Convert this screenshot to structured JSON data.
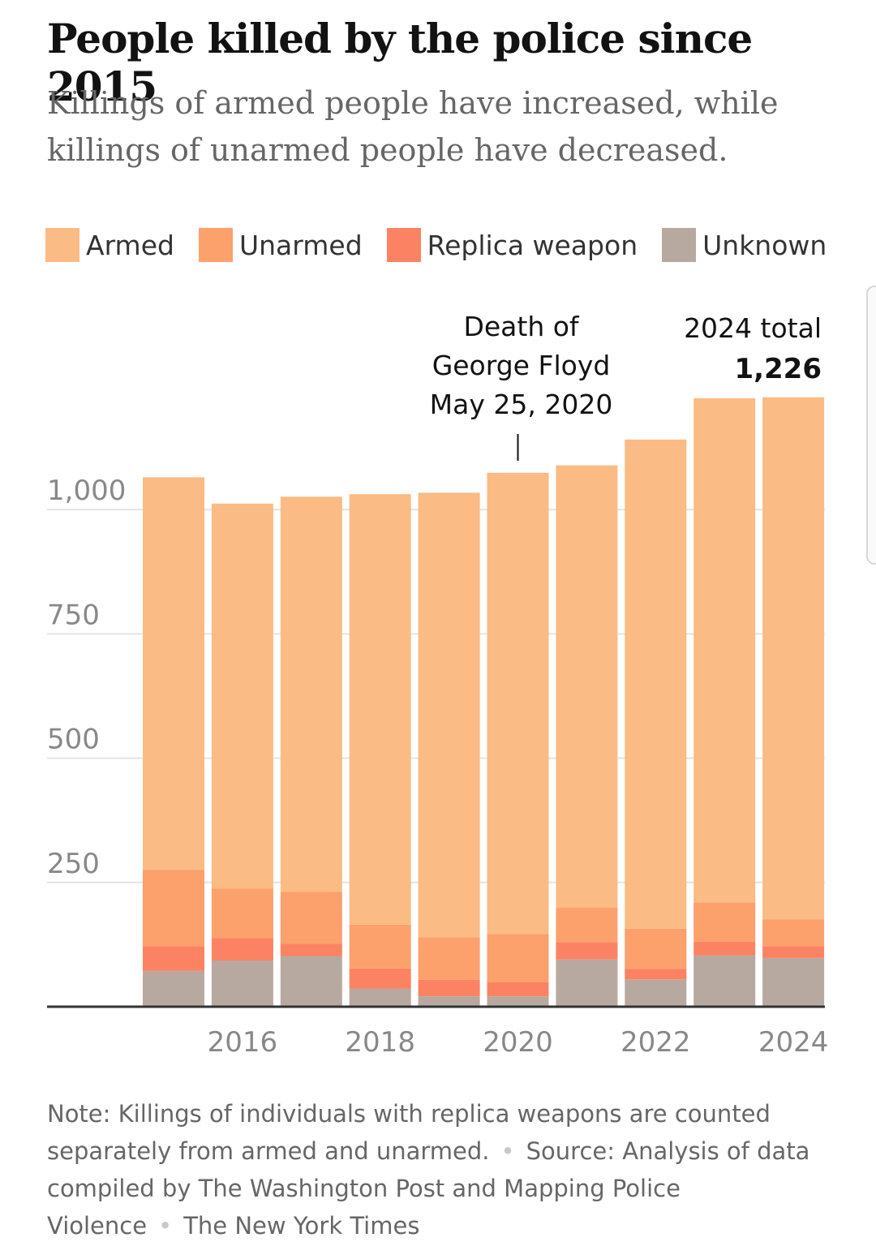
{
  "title": "People killed by the police since 2015",
  "subtitle": "Killings of armed people have increased, while killings of unarmed people have decreased.",
  "colors": {
    "armed": "#fbbb85",
    "unarmed": "#fca06c",
    "replica": "#fb8363",
    "unknown": "#b8a9a0",
    "grid": "#e4e4e4",
    "axis": "#333333",
    "tick": "#888888"
  },
  "chart_data": {
    "type": "bar",
    "stacked": true,
    "categories": [
      "2015",
      "2016",
      "2017",
      "2018",
      "2019",
      "2020",
      "2021",
      "2022",
      "2023",
      "2024"
    ],
    "x_tick_labels": [
      "2016",
      "2018",
      "2020",
      "2022",
      "2024"
    ],
    "series": [
      {
        "name": "Unknown",
        "color": "#b8a9a0",
        "values": [
          72,
          93,
          102,
          36,
          21,
          21,
          95,
          55,
          103,
          98
        ]
      },
      {
        "name": "Replica weapon",
        "color": "#fb8363",
        "values": [
          50,
          45,
          25,
          41,
          33,
          28,
          35,
          21,
          28,
          24
        ]
      },
      {
        "name": "Unarmed",
        "color": "#fca06c",
        "values": [
          153,
          100,
          104,
          88,
          86,
          97,
          69,
          81,
          79,
          54
        ]
      },
      {
        "name": "Armed",
        "color": "#fbbb85",
        "values": [
          790,
          774,
          795,
          866,
          894,
          928,
          890,
          984,
          1014,
          1050
        ]
      }
    ],
    "totals": [
      1065,
      1012,
      1026,
      1031,
      1034,
      1074,
      1089,
      1141,
      1224,
      1226
    ],
    "ylim": [
      0,
      1250
    ],
    "y_ticks": [
      250,
      500,
      750,
      1000
    ],
    "y_tick_labels": [
      "250",
      "500",
      "750",
      "1,000"
    ],
    "legend": [
      "Armed",
      "Unarmed",
      "Replica weapon",
      "Unknown"
    ],
    "legend_position": "top-left",
    "grid": true,
    "annotations": [
      {
        "category": "2020",
        "lines": [
          "Death of",
          "George Floyd",
          "May 25, 2020"
        ]
      },
      {
        "category": "2024",
        "label": "2024 total",
        "value": "1,226"
      }
    ]
  },
  "note": {
    "text": "Note: Killings of individuals with replica weapons are counted separately from armed and unarmed.",
    "source": "Source: Analysis of data compiled by The Washington Post and Mapping Police Violence",
    "credit": "The New York Times"
  }
}
